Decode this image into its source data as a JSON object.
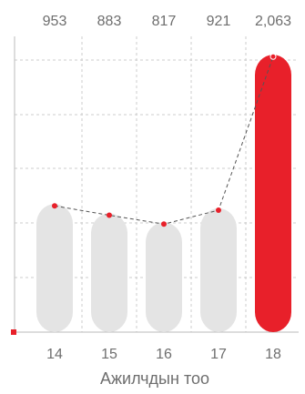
{
  "chart_data": {
    "type": "bar",
    "categories": [
      "14",
      "15",
      "16",
      "17",
      "18"
    ],
    "values": [
      953,
      883,
      817,
      921,
      2063
    ],
    "value_labels": [
      "953",
      "883",
      "817",
      "921",
      "2,063"
    ],
    "line_values": [
      953,
      883,
      817,
      921,
      2063
    ],
    "xlabel": "Ажилчдын тоо",
    "ylim": [
      0,
      2200
    ],
    "grid": true,
    "highlight_index": 4,
    "colors": {
      "bar": "#e4e4e4",
      "highlight": "#e8202a",
      "line": "#555555",
      "marker": "#e8202a",
      "grid": "#cccccc",
      "text": "#6e6e6e"
    }
  }
}
